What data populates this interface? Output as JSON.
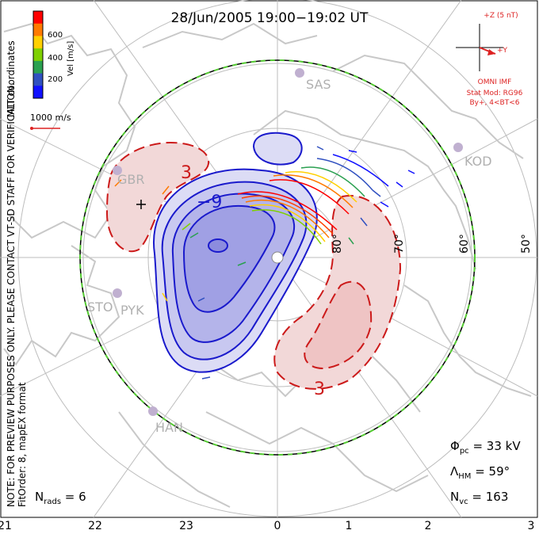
{
  "title": "28/Jun/2005 19:00−19:02 UT",
  "coords_label": "MLT coordinates",
  "note_text": "NOTE: FOR PREVIEW PURPOSES ONLY. PLEASE CONTACT VT-SD STAFF FOR VERIFICATION.",
  "fit_text": "FitOrder: 8, mapEX format",
  "colorbar": {
    "label": "Vel [m/s]",
    "ticks": [
      "600",
      "400",
      "200"
    ],
    "colors": [
      "#ff0000",
      "#ff7a00",
      "#ffd000",
      "#7fd000",
      "#2aa050",
      "#3050c0",
      "#1010ff"
    ]
  },
  "scale_vector": {
    "label": "1000 m/s"
  },
  "imf": {
    "scale": "+Z (5 nT)",
    "y_axis": "+Y",
    "source": "OMNI IMF",
    "model": "Stat Mod: RG96",
    "condition": "By+, 4<BT<6"
  },
  "stations": [
    "SAS",
    "KOD",
    "GBR",
    "STO",
    "PYK",
    "HAN"
  ],
  "lat_labels": [
    "80°",
    "70°",
    "60°",
    "50°"
  ],
  "contour_labels": [
    "3",
    "−9",
    "3"
  ],
  "stats": {
    "phi_label": "Φ",
    "phi_sub": "pc",
    "phi_value": " = 33 kV",
    "lambda_label": "Λ",
    "lambda_sub": "HM",
    "lambda_value": " = 59°",
    "nvc_label": "N",
    "nvc_sub": "vc",
    "nvc_value": " = 163",
    "nrads_label": "N",
    "nrads_sub": "rads",
    "nrads_value": " = 6"
  },
  "mlt_ticks": [
    "21",
    "22",
    "23",
    "0",
    "1",
    "2",
    "3"
  ],
  "colors": {
    "negative_fill": "#c8c8f0",
    "negative_line": "#1a1acc",
    "positive_fill": "#f2c8c8",
    "positive_line": "#cc1a1a",
    "map": "#c8c8c8",
    "boundary_green": "#55cc33",
    "imf_red": "#dd2222"
  }
}
